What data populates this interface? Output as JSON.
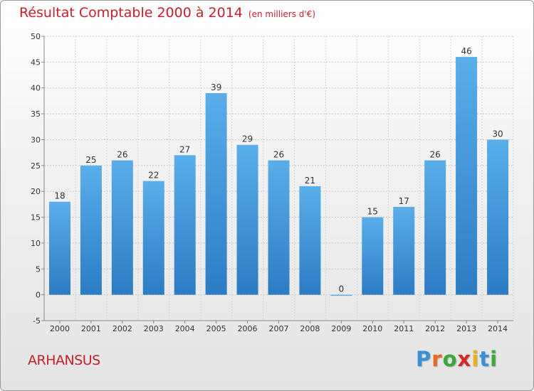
{
  "title": "Résultat Comptable 2000 à 2014",
  "subtitle": "(en milliers d'€)",
  "location": "ARHANSUS",
  "logo": {
    "letters": [
      "P",
      "r",
      "o",
      "x",
      "i",
      "t",
      "i"
    ],
    "colors": [
      "#3a8fd8",
      "#e86a1c",
      "#3ca83c",
      "#d22b2b",
      "#e8b21c",
      "#3a8fd8",
      "#3ca83c"
    ]
  },
  "colors": {
    "bar_top": "#5aaeea",
    "bar_bottom": "#2c7cc4",
    "title": "#c8202a"
  },
  "chart_data": {
    "type": "bar",
    "title": "Résultat Comptable 2000 à 2014",
    "subtitle": "(en milliers d'€)",
    "xlabel": "",
    "ylabel": "",
    "categories": [
      "2000",
      "2001",
      "2002",
      "2003",
      "2004",
      "2005",
      "2006",
      "2007",
      "2008",
      "2009",
      "2010",
      "2011",
      "2012",
      "2013",
      "2014"
    ],
    "values": [
      18,
      25,
      26,
      22,
      27,
      39,
      29,
      26,
      21,
      0,
      15,
      17,
      26,
      46,
      30
    ],
    "ylim": [
      -5,
      50
    ],
    "yticks": [
      -5,
      0,
      5,
      10,
      15,
      20,
      25,
      30,
      35,
      40,
      45,
      50
    ],
    "grid": true,
    "legend": "none"
  }
}
